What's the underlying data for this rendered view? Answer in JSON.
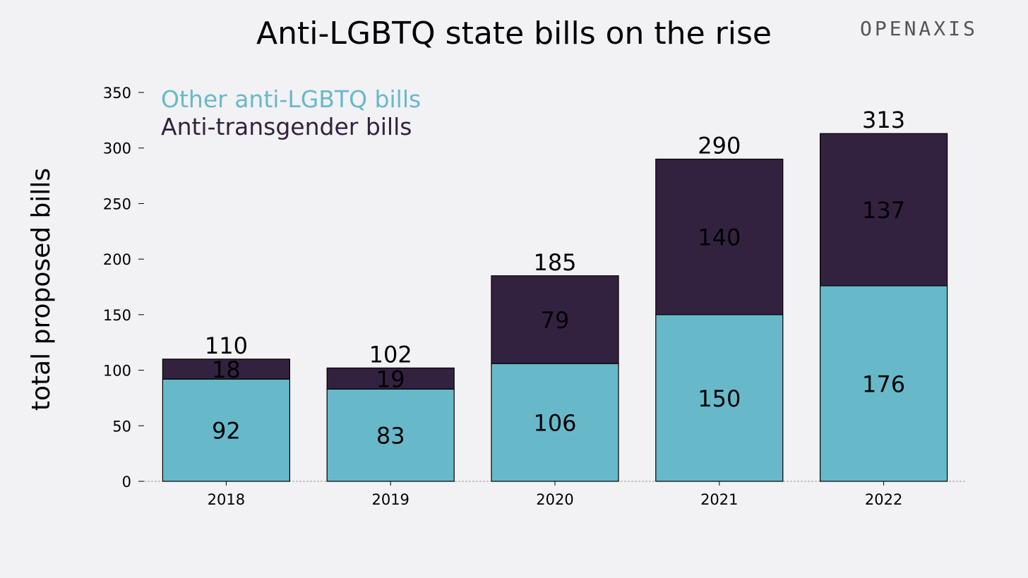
{
  "header": {
    "title": "Anti-LGBTQ state bills on the rise",
    "brand": "OPENAXIS"
  },
  "chart_data": {
    "type": "bar",
    "stacked": true,
    "categories": [
      "2018",
      "2019",
      "2020",
      "2021",
      "2022"
    ],
    "series": [
      {
        "name": "Other anti-LGBTQ bills",
        "color": "#67b9ca",
        "values": [
          92,
          83,
          106,
          150,
          176
        ]
      },
      {
        "name": "Anti-transgender bills",
        "color": "#33223f",
        "values": [
          18,
          19,
          79,
          140,
          137
        ]
      }
    ],
    "totals": [
      110,
      102,
      185,
      290,
      313
    ],
    "ylabel": "total proposed bills",
    "ylim": [
      0,
      350
    ],
    "yticks": [
      0,
      50,
      100,
      150,
      200,
      250,
      300,
      350
    ],
    "legend_position": "top-left",
    "grid": false
  }
}
